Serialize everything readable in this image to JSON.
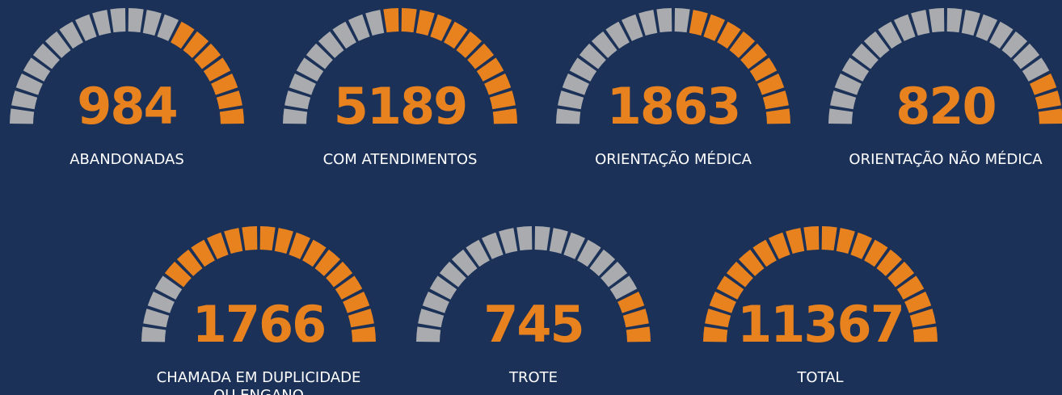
{
  "chart_data": {
    "type": "gauge",
    "segments": 20,
    "fill_color": "#e8821e",
    "empty_color": "#a9abae",
    "items": [
      {
        "value": 984,
        "label": [
          "ABANDONADAS"
        ],
        "filled": 7
      },
      {
        "value": 5189,
        "label": [
          "COM ATENDIMENTOS"
        ],
        "filled": 11
      },
      {
        "value": 1863,
        "label": [
          "ORIENTAÇÃO MÉDICA"
        ],
        "filled": 9
      },
      {
        "value": 820,
        "label": [
          "ORIENTAÇÃO NÃO MÉDICA"
        ],
        "filled": 3
      },
      {
        "value": 1766,
        "label": [
          "CHAMADA EM DUPLICIDADE",
          "OU ENGANO"
        ],
        "filled": 16
      },
      {
        "value": 745,
        "label": [
          "TROTE"
        ],
        "filled": 3
      },
      {
        "value": 11367,
        "label": [
          "TOTAL"
        ],
        "filled": 20
      }
    ]
  }
}
